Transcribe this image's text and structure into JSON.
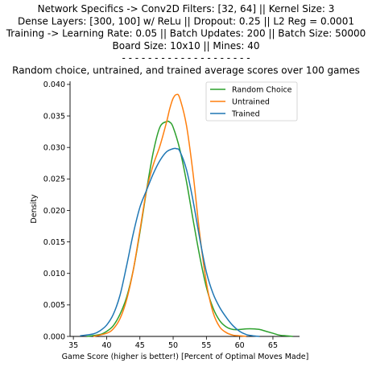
{
  "chart_data": {
    "type": "line",
    "title_lines": [
      "Network Specifics -> Conv2D Filters: [32, 64] || Kernel Size: 3",
      "Dense Layers: [300, 100] w/ ReLu || Dropout: 0.25  || L2 Reg = 0.0001",
      "Training -> Learning Rate: 0.05 || Batch Updates: 200 || Batch Size: 50000",
      "Board Size: 10x10 || Mines: 40",
      "- - - - - - - - - - - - - - - - - - - -",
      "Random choice, untrained, and trained average scores over 100 games"
    ],
    "xlabel": "Game Score (higher is better!) [Percent of Optimal Moves Made]",
    "ylabel": "Density",
    "xlim": [
      34.5,
      69
    ],
    "ylim": [
      0,
      0.0405
    ],
    "x_ticks": [
      35,
      40,
      45,
      50,
      55,
      60,
      65
    ],
    "y_ticks": [
      0.0,
      0.005,
      0.01,
      0.015,
      0.02,
      0.025,
      0.03,
      0.035,
      0.04
    ],
    "x_tick_labels": [
      "35",
      "40",
      "45",
      "50",
      "55",
      "60",
      "65"
    ],
    "y_tick_labels": [
      "0.000",
      "0.005",
      "0.010",
      "0.015",
      "0.020",
      "0.025",
      "0.030",
      "0.035",
      "0.040"
    ],
    "grid": false,
    "legend_position": "top-right",
    "series": [
      {
        "name": "Random Choice",
        "color": "#2ca02c",
        "x": [
          37,
          39,
          40,
          41,
          42,
          43,
          44,
          45,
          46,
          47,
          48,
          49,
          49.5,
          50,
          51,
          52,
          53,
          54,
          55,
          56,
          57,
          58,
          59,
          60,
          61,
          62,
          63,
          64,
          65,
          66,
          67,
          68
        ],
        "y": [
          0.0,
          0.0003,
          0.0008,
          0.0017,
          0.0035,
          0.0062,
          0.0105,
          0.0165,
          0.0232,
          0.0292,
          0.0332,
          0.0341,
          0.034,
          0.0332,
          0.0297,
          0.0246,
          0.0185,
          0.0127,
          0.0078,
          0.0045,
          0.0025,
          0.0015,
          0.0011,
          0.0011,
          0.0012,
          0.0012,
          0.0011,
          0.0008,
          0.0005,
          0.0002,
          0.0001,
          0.0
        ]
      },
      {
        "name": "Untrained",
        "color": "#ff7f0e",
        "x": [
          38,
          40,
          41,
          42,
          43,
          44,
          45,
          46,
          47,
          48,
          49,
          49.5,
          50,
          50.5,
          51,
          52,
          53,
          54,
          55,
          56,
          57,
          58,
          59,
          60,
          61
        ],
        "y": [
          0.0,
          0.0005,
          0.0012,
          0.0028,
          0.0058,
          0.0105,
          0.0168,
          0.0232,
          0.0272,
          0.0302,
          0.034,
          0.0362,
          0.0378,
          0.0384,
          0.0378,
          0.0335,
          0.0258,
          0.0162,
          0.0085,
          0.0038,
          0.0015,
          0.0006,
          0.0002,
          0.0001,
          0.0
        ]
      },
      {
        "name": "Trained",
        "color": "#1f77b4",
        "x": [
          36,
          38,
          39,
          40,
          41,
          42,
          43,
          44,
          45,
          46,
          47,
          48,
          49,
          50,
          50.5,
          51,
          52,
          53,
          54,
          55,
          56,
          57,
          58,
          59,
          60,
          61,
          62,
          63
        ],
        "y": [
          0.0001,
          0.0004,
          0.0009,
          0.0018,
          0.0035,
          0.0065,
          0.0112,
          0.0163,
          0.0205,
          0.0232,
          0.0258,
          0.0279,
          0.0293,
          0.0298,
          0.0298,
          0.0294,
          0.0265,
          0.0215,
          0.0155,
          0.0102,
          0.0068,
          0.0046,
          0.003,
          0.0017,
          0.0008,
          0.0003,
          0.0001,
          0.0
        ]
      }
    ]
  }
}
